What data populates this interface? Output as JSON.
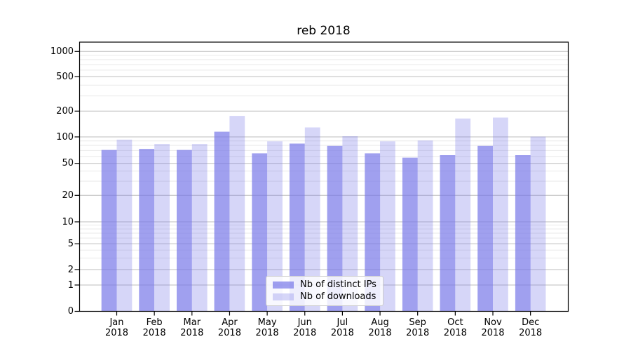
{
  "title": "reb 2018",
  "colors": {
    "bar_base": "#7777e8",
    "ips_fill_effective": "#a0a0ef",
    "downloads_fill_effective": "#d6d6f8",
    "ips_alpha": 0.7,
    "downloads_alpha": 0.3,
    "major_grid": "#bdbdbd",
    "minor_grid": "#e9e9e9",
    "axis": "#000000",
    "background": "#ffffff"
  },
  "legend": {
    "items": [
      {
        "key": "ips",
        "label": "Nb of distinct IPs"
      },
      {
        "key": "downloads",
        "label": "Nb of downloads"
      }
    ]
  },
  "y_axis": {
    "tick_labels": [
      "1000",
      "500",
      "200",
      "100",
      "50",
      "20",
      "10",
      "5",
      "2",
      "1",
      "0"
    ],
    "tick_values": [
      1000,
      500,
      200,
      100,
      50,
      20,
      10,
      5,
      2,
      1,
      0
    ]
  },
  "x_axis": {
    "labels": [
      [
        "Jan",
        "2018"
      ],
      [
        "Feb",
        "2018"
      ],
      [
        "Mar",
        "2018"
      ],
      [
        "Apr",
        "2018"
      ],
      [
        "May",
        "2018"
      ],
      [
        "Jun",
        "2018"
      ],
      [
        "Jul",
        "2018"
      ],
      [
        "Aug",
        "2018"
      ],
      [
        "Sep",
        "2018"
      ],
      [
        "Oct",
        "2018"
      ],
      [
        "Nov",
        "2018"
      ],
      [
        "Dec",
        "2018"
      ]
    ]
  },
  "chart_data": {
    "type": "bar",
    "title": "reb 2018",
    "categories": [
      "Jan 2018",
      "Feb 2018",
      "Mar 2018",
      "Apr 2018",
      "May 2018",
      "Jun 2018",
      "Jul 2018",
      "Aug 2018",
      "Sep 2018",
      "Oct 2018",
      "Nov 2018",
      "Dec 2018"
    ],
    "series": [
      {
        "name": "Nb of distinct IPs",
        "values": [
          71,
          73,
          71,
          115,
          65,
          84,
          79,
          65,
          58,
          62,
          79,
          62
        ]
      },
      {
        "name": "Nb of downloads",
        "values": [
          93,
          83,
          83,
          176,
          89,
          129,
          102,
          89,
          91,
          164,
          168,
          101
        ]
      }
    ],
    "xlabel": "",
    "ylabel": "",
    "yscale": "symlog",
    "yticks": [
      0,
      1,
      2,
      5,
      10,
      20,
      50,
      100,
      200,
      500,
      1000
    ],
    "ylim": [
      0,
      1300
    ],
    "grid": "horizontal, major and minor (log minors)",
    "legend_position": "lower center inside plot"
  }
}
